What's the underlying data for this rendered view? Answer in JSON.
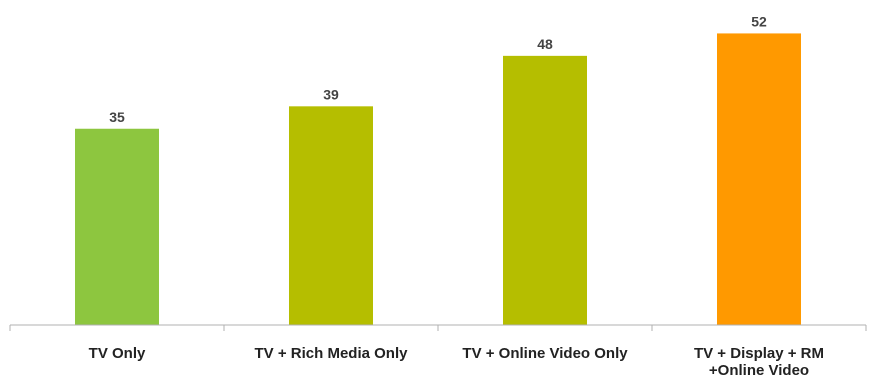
{
  "chart_data": {
    "type": "bar",
    "categories": [
      [
        "TV Only"
      ],
      [
        "TV + Rich Media Only"
      ],
      [
        "TV + Online Video Only"
      ],
      [
        "TV + Display + RM",
        "+Online Video"
      ]
    ],
    "values": [
      35,
      39,
      48,
      52
    ],
    "value_labels": [
      "35",
      "39",
      "48",
      "52"
    ],
    "bar_colors": [
      "#8dc63f",
      "#b5be00",
      "#b5be00",
      "#ff9900"
    ],
    "ylim": [
      0,
      56
    ],
    "grid": false,
    "legend": "none"
  }
}
